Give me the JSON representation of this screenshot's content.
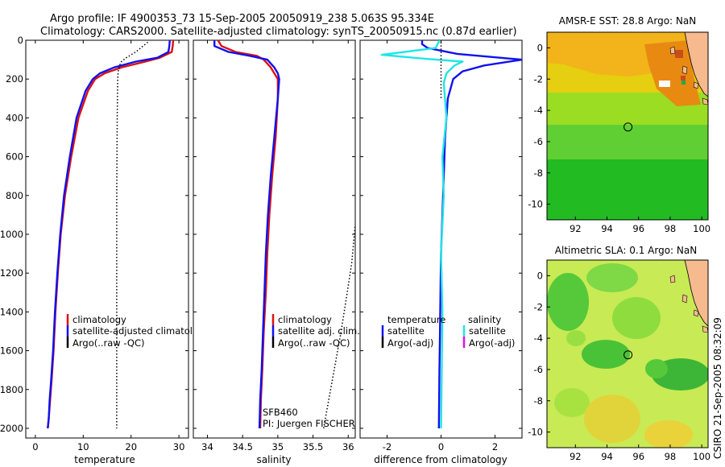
{
  "header": {
    "title_line1": "Argo profile: IF 4900353_73 15-Sep-2005 20050919_238 5.063S 95.334E",
    "title_line2": "Climatology: CARS2000. Satellite-adjusted climatology: synTS_20050915.nc (0.87d earlier)"
  },
  "side_label": "CSIRO 21-Sep-2005 08:32:09",
  "colors": {
    "climatology": "#dd1111",
    "satellite": "#1111ee",
    "argo": "#000000",
    "salinity_satellite": "#22e5e5",
    "salinity_argo": "#e010e0",
    "land": "#f7b98e",
    "marker": "#000000"
  },
  "chart_data": [
    {
      "id": "temperature",
      "type": "line",
      "xlabel": "temperature",
      "xlim": [
        -2,
        32
      ],
      "ylim": [
        0,
        2050
      ],
      "y_reversed": true,
      "xticks": [
        0,
        10,
        20,
        30
      ],
      "yticks": [
        0,
        200,
        400,
        600,
        800,
        1000,
        1200,
        1400,
        1600,
        1800,
        2000
      ],
      "legend": [
        "climatology",
        "satellite-adjusted climatology",
        "Argo(..raw -QC)"
      ],
      "legend_visible": [
        "climatology",
        "satellite-adjusted climatolog",
        "Argo(..raw -QC)"
      ],
      "series": [
        {
          "name": "climatology",
          "style": "solid",
          "color": "#dd1111",
          "x": [
            28.8,
            28.7,
            28.5,
            26,
            23,
            18,
            14.5,
            12.5,
            11,
            9,
            7.5,
            6.2,
            5.3,
            4.7,
            4.2,
            3.8,
            3.4,
            3.1,
            2.8,
            2.6
          ],
          "y": [
            0,
            30,
            60,
            90,
            110,
            140,
            170,
            200,
            260,
            400,
            600,
            800,
            1000,
            1200,
            1400,
            1600,
            1750,
            1850,
            1950,
            2000
          ]
        },
        {
          "name": "satellite-adjusted climatology",
          "style": "solid",
          "color": "#1111ee",
          "x": [
            28.1,
            28.0,
            27.8,
            25.5,
            21,
            16.5,
            13.5,
            12,
            10.5,
            8.6,
            7.2,
            6.0,
            5.2,
            4.6,
            4.1,
            3.7,
            3.3,
            3.0,
            2.8,
            2.6
          ],
          "y": [
            0,
            30,
            60,
            90,
            110,
            140,
            170,
            200,
            260,
            400,
            600,
            800,
            1000,
            1200,
            1400,
            1600,
            1750,
            1850,
            1950,
            2000
          ]
        },
        {
          "name": "Argo(..raw -QC)",
          "style": "dotted",
          "color": "#000000",
          "x": [
            23.5,
            22.5,
            21,
            19,
            18,
            17.6,
            17.3,
            17.2,
            17.1,
            17.0,
            17.0,
            17.0,
            17.0,
            17.0
          ],
          "y": [
            10,
            30,
            60,
            90,
            110,
            130,
            160,
            200,
            400,
            800,
            1200,
            1600,
            1900,
            2000
          ]
        }
      ]
    },
    {
      "id": "salinity",
      "type": "line",
      "xlabel": "salinity",
      "xlim": [
        33.8,
        36.1
      ],
      "ylim": [
        0,
        2050
      ],
      "y_reversed": true,
      "xticks": [
        34,
        34.5,
        35,
        35.5,
        36
      ],
      "legend": [
        "climatology",
        "satellite adj. clim.",
        "Argo(..raw -QC)"
      ],
      "annotation": [
        "SFB460",
        "PI: Juergen FISCHER"
      ],
      "series": [
        {
          "name": "climatology",
          "style": "solid",
          "color": "#dd1111",
          "x": [
            34.15,
            34.2,
            34.4,
            34.7,
            34.8,
            34.9,
            34.95,
            35.0,
            35.0,
            34.97,
            34.92,
            34.88,
            34.85,
            34.83,
            34.8,
            34.78,
            34.76,
            34.75
          ],
          "y": [
            0,
            30,
            60,
            80,
            100,
            140,
            170,
            200,
            300,
            500,
            700,
            900,
            1100,
            1300,
            1500,
            1700,
            1850,
            2000
          ]
        },
        {
          "name": "satellite adj. clim.",
          "style": "solid",
          "color": "#1111ee",
          "x": [
            34.1,
            34.1,
            34.3,
            34.6,
            34.85,
            34.95,
            35.0,
            35.02,
            35.0,
            34.95,
            34.9,
            34.86,
            34.83,
            34.81,
            34.79,
            34.77,
            34.75,
            34.74
          ],
          "y": [
            0,
            30,
            60,
            80,
            100,
            140,
            170,
            200,
            300,
            500,
            700,
            900,
            1100,
            1300,
            1500,
            1700,
            1850,
            2000
          ]
        },
        {
          "name": "Argo(..raw -QC)",
          "style": "dotted",
          "color": "#000000",
          "x": [
            35.65,
            35.75,
            35.9,
            36.05,
            36.1
          ],
          "y": [
            2000,
            1800,
            1500,
            1150,
            950
          ]
        }
      ]
    },
    {
      "id": "difference",
      "type": "line",
      "xlabel": "difference from climatology",
      "xlim": [
        -3,
        3
      ],
      "ylim": [
        0,
        2050
      ],
      "y_reversed": true,
      "xticks": [
        -2,
        0,
        2
      ],
      "legend_left": [
        "temperature",
        "satellite",
        "Argo(-adj)"
      ],
      "legend_right": [
        "salinity",
        "satellite",
        "Argo(-adj)"
      ],
      "series": [
        {
          "name": "temperature satellite",
          "style": "solid",
          "color": "#1111ee",
          "x": [
            -0.7,
            -0.7,
            -0.5,
            0.6,
            3.0,
            1.6,
            0.8,
            0.45,
            0.25,
            0.15,
            0.1,
            0.05,
            0.0,
            -0.02,
            -0.04,
            -0.06,
            -0.08
          ],
          "y": [
            0,
            20,
            40,
            70,
            100,
            130,
            160,
            200,
            300,
            500,
            700,
            900,
            1100,
            1300,
            1500,
            1700,
            2000
          ]
        },
        {
          "name": "salinity satellite",
          "style": "solid",
          "color": "#22e5e5",
          "x": [
            -0.05,
            -0.2,
            -2.2,
            -0.6,
            0.8,
            0.5,
            0.2,
            0.1,
            0.2,
            0.05,
            0.1,
            0.0,
            0.05,
            0.0
          ],
          "y": [
            0,
            40,
            75,
            95,
            110,
            130,
            170,
            220,
            400,
            600,
            800,
            1100,
            1400,
            2000
          ]
        },
        {
          "name": "zero reference",
          "style": "dotted",
          "color": "#000000",
          "x": [
            0,
            0
          ],
          "y": [
            10,
            300
          ]
        }
      ]
    },
    {
      "id": "sst_map",
      "type": "heatmap",
      "title": "AMSR-E SST: 28.8 Argo: NaN",
      "xlim": [
        90.2,
        100.4
      ],
      "ylim": [
        -11,
        1
      ],
      "xticks": [
        92,
        94,
        96,
        98,
        100
      ],
      "yticks": [
        0,
        -2,
        -4,
        -6,
        -8,
        -10
      ],
      "marker": [
        95.33,
        -5.06
      ]
    },
    {
      "id": "sla_map",
      "type": "heatmap",
      "title": "Altimetric SLA: 0.1 Argo: NaN",
      "xlim": [
        90.2,
        100.4
      ],
      "ylim": [
        -11,
        1
      ],
      "xticks": [
        92,
        94,
        96,
        98,
        100
      ],
      "yticks": [
        0,
        -2,
        -4,
        -6,
        -8,
        -10
      ],
      "marker": [
        95.33,
        -5.06
      ]
    }
  ]
}
